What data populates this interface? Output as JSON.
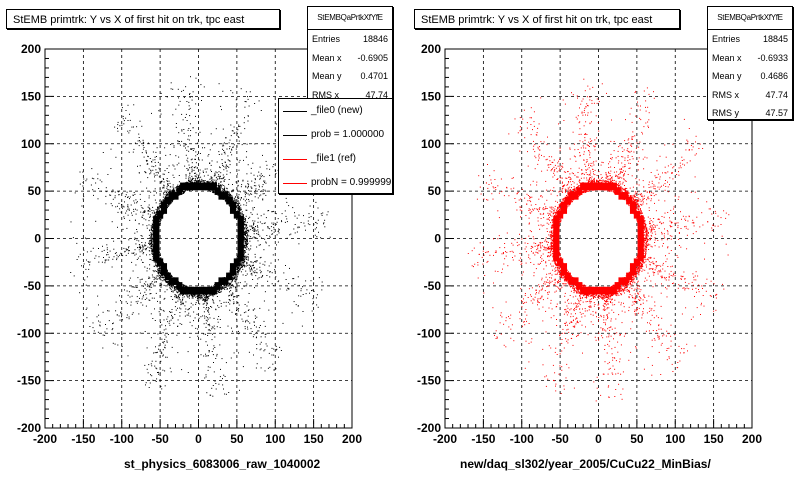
{
  "left": {
    "title": "StEMB primtrk: Y vs X of first hit on trk, tpc east",
    "xtitle": "st_physics_6083006_raw_1040002",
    "stats": {
      "name": "StEMBQaPrtkXfYfE",
      "rows": [
        {
          "label": "Entries",
          "value": "18846"
        },
        {
          "label": "Mean x",
          "value": "-0.6905"
        },
        {
          "label": "Mean y",
          "value": "0.4701"
        },
        {
          "label": "RMS x",
          "value": "47.74"
        }
      ]
    },
    "legend": [
      {
        "label": "_file0 (new)",
        "color": "#000000"
      },
      {
        "label": "prob = 1.000000",
        "color": "#000000"
      },
      {
        "label": "_file1 (ref)",
        "color": "#ff0000"
      },
      {
        "label": "probN = 0.999999",
        "color": "#ff0000"
      }
    ]
  },
  "right": {
    "title": "StEMB primtrk: Y vs X of first hit on trk, tpc east",
    "xtitle": "new/daq_sl302/year_2005/CuCu22_MinBias/",
    "stats": {
      "name": "StEMBQaPrtkXfYfE",
      "rows": [
        {
          "label": "Entries",
          "value": "18845"
        },
        {
          "label": "Mean x",
          "value": "-0.6933"
        },
        {
          "label": "Mean y",
          "value": "0.4686"
        },
        {
          "label": "RMS x",
          "value": "47.74"
        },
        {
          "label": "RMS y",
          "value": "47.57"
        }
      ]
    }
  },
  "bottom_text": "",
  "chart_data": [
    {
      "type": "scatter",
      "title": "StEMB primtrk: Y vs X of first hit on trk, tpc east",
      "xlabel": "st_physics_6083006_raw_1040002",
      "ylabel": "",
      "xlim": [
        -200,
        200
      ],
      "ylim": [
        -200,
        200
      ],
      "xticks": [
        -200,
        -150,
        -100,
        -50,
        0,
        50,
        100,
        150,
        200
      ],
      "yticks": [
        -200,
        -150,
        -100,
        -50,
        0,
        50,
        100,
        150,
        200
      ],
      "grid": true,
      "color": "#000000",
      "ring": {
        "center": [
          0,
          0
        ],
        "inner_radius": 52,
        "outer_radius": 62
      },
      "entries": 18846,
      "mean_x": -0.6905,
      "mean_y": 0.4701,
      "rms_x": 47.74
    },
    {
      "type": "scatter",
      "title": "StEMB primtrk: Y vs X of first hit on trk, tpc east",
      "xlabel": "new/daq_sl302/year_2005/CuCu22_MinBias/",
      "ylabel": "",
      "xlim": [
        -200,
        200
      ],
      "ylim": [
        -200,
        200
      ],
      "xticks": [
        -200,
        -150,
        -100,
        -50,
        0,
        50,
        100,
        150,
        200
      ],
      "yticks": [
        -200,
        -150,
        -100,
        -50,
        0,
        50,
        100,
        150,
        200
      ],
      "grid": true,
      "color": "#ff0000",
      "ring": {
        "center": [
          0,
          0
        ],
        "inner_radius": 52,
        "outer_radius": 62
      },
      "entries": 18845,
      "mean_x": -0.6933,
      "mean_y": 0.4686,
      "rms_x": 47.74,
      "rms_y": 47.57
    }
  ]
}
